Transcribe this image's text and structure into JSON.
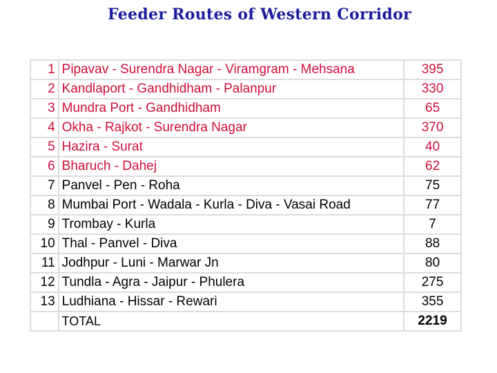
{
  "header": {
    "title": "Feeder Routes of Western Corridor"
  },
  "table": {
    "rows": [
      [
        "1",
        "Pipavav - Surendra Nagar - Viramgram - Mehsana",
        "395"
      ],
      [
        "2",
        "Kandlaport - Gandhidham - Palanpur",
        "330"
      ],
      [
        "3",
        "Mundra Port - Gandhidham",
        "65"
      ],
      [
        "4",
        "Okha - Rajkot - Surendra Nagar",
        "370"
      ],
      [
        "5",
        "Hazira - Surat",
        "40"
      ],
      [
        "6",
        "Bharuch - Dahej",
        "62"
      ],
      [
        "7",
        "Panvel - Pen - Roha",
        "75"
      ],
      [
        "8",
        "Mumbai Port - Wadala - Kurla - Diva - Vasai Road",
        "77"
      ],
      [
        "9",
        "Trombay - Kurla",
        "7"
      ],
      [
        "10",
        "Thal - Panvel - Diva",
        "88"
      ],
      [
        "11",
        "Jodhpur - Luni - Marwar Jn",
        "80"
      ],
      [
        "12",
        "Tundla - Agra - Jaipur - Phulera",
        "275"
      ],
      [
        "13",
        "Ludhiana - Hissar - Rewari",
        "355"
      ]
    ],
    "total": {
      "label": "TOTAL",
      "value": "2219"
    }
  }
}
